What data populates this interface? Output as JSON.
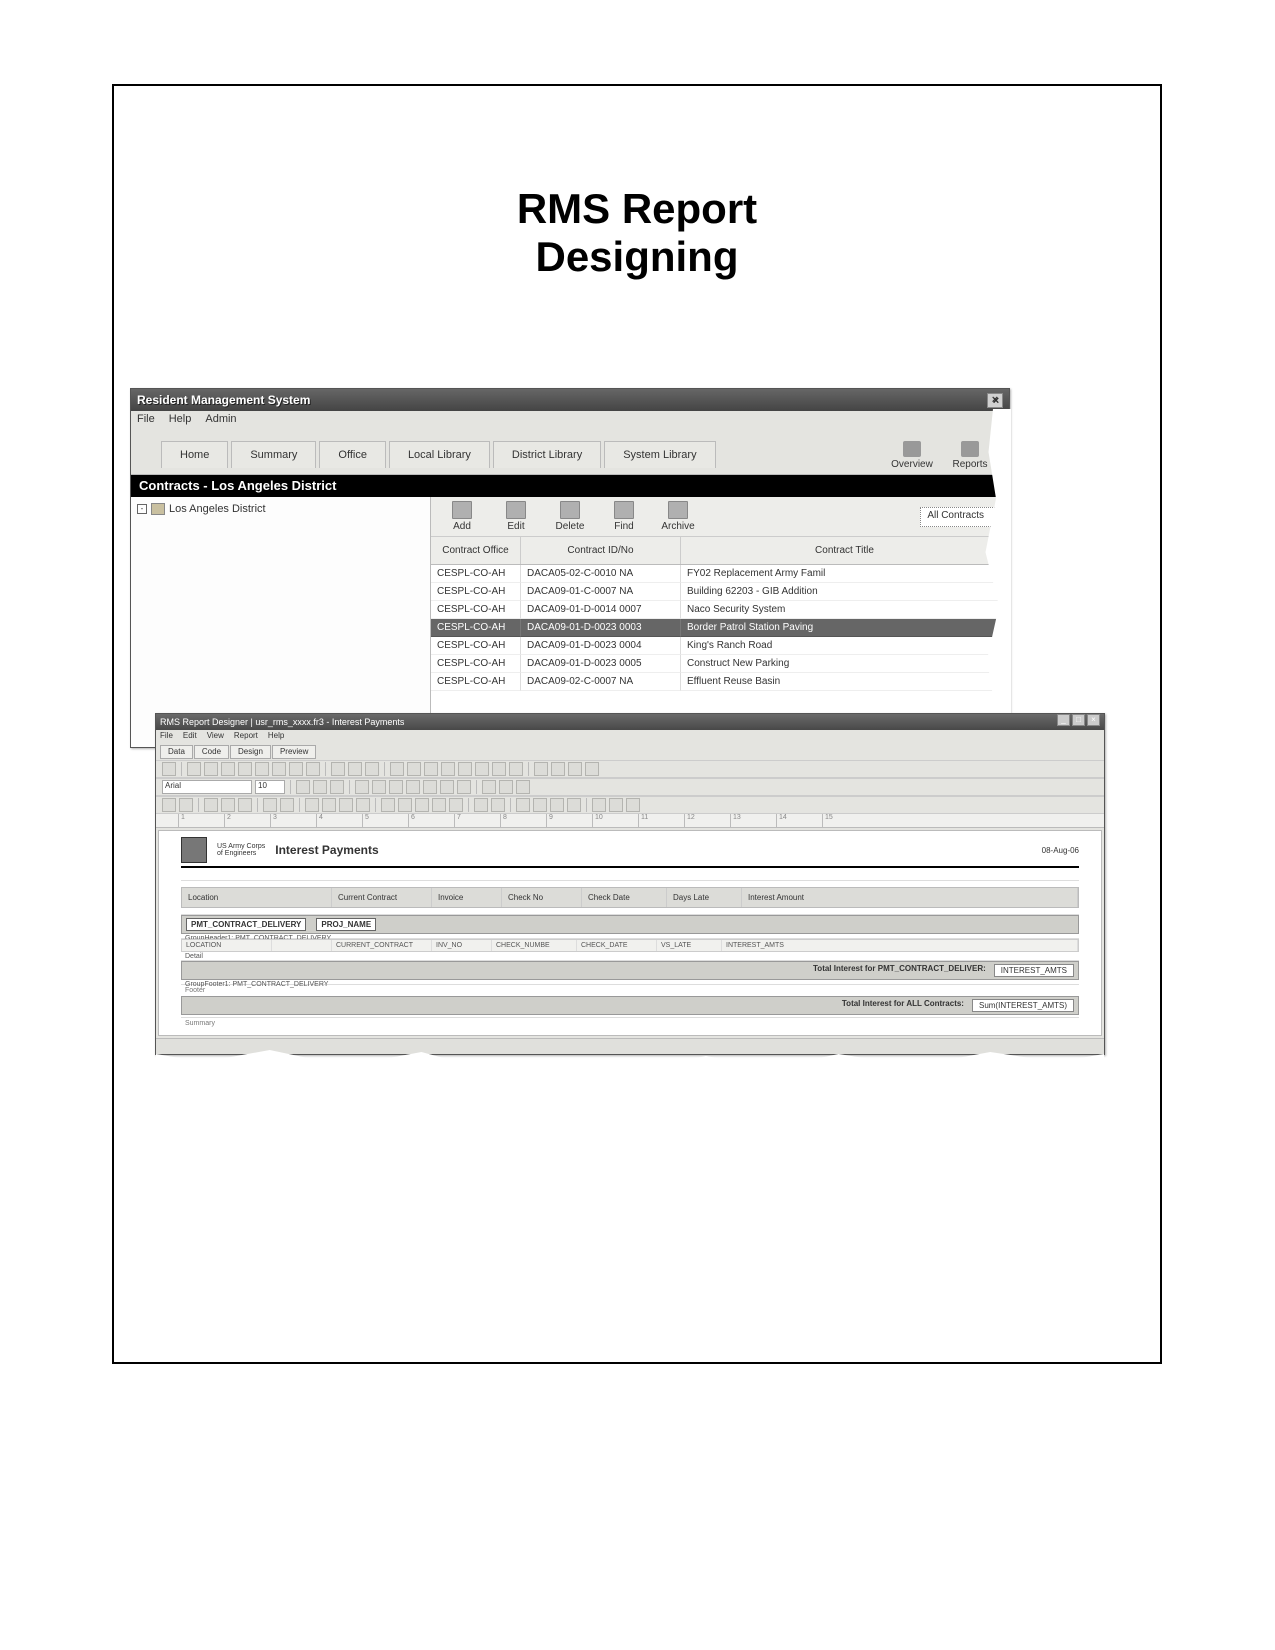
{
  "page_title_line1": "RMS Report",
  "page_title_line2": "Designing",
  "rms": {
    "title": "Resident Management System",
    "menubar": [
      "File",
      "Help",
      "Admin"
    ],
    "tabs": [
      "Home",
      "Summary",
      "Office",
      "Local Library",
      "District Library",
      "System Library"
    ],
    "right_buttons": [
      {
        "label": "Overview"
      },
      {
        "label": "Reports"
      }
    ],
    "section": "Contracts - Los Angeles District",
    "tree_root": "Los Angeles District",
    "actions": [
      "Add",
      "Edit",
      "Delete",
      "Find",
      "Archive"
    ],
    "filter": "All Contracts",
    "columns": [
      "Contract Office",
      "Contract ID/No",
      "Contract Title"
    ],
    "rows": [
      {
        "office": "CESPL-CO-AH",
        "idno": "DACA05-02-C-0010 NA",
        "title": "FY02 Replacement Army Famil",
        "sel": false
      },
      {
        "office": "CESPL-CO-AH",
        "idno": "DACA09-01-C-0007 NA",
        "title": "Building 62203 - GIB Addition",
        "sel": false
      },
      {
        "office": "CESPL-CO-AH",
        "idno": "DACA09-01-D-0014 0007",
        "title": "Naco Security System",
        "sel": false
      },
      {
        "office": "CESPL-CO-AH",
        "idno": "DACA09-01-D-0023 0003",
        "title": "Border Patrol Station Paving",
        "sel": true
      },
      {
        "office": "CESPL-CO-AH",
        "idno": "DACA09-01-D-0023 0004",
        "title": "King's Ranch Road",
        "sel": false
      },
      {
        "office": "CESPL-CO-AH",
        "idno": "DACA09-01-D-0023 0005",
        "title": "Construct New Parking",
        "sel": false
      },
      {
        "office": "CESPL-CO-AH",
        "idno": "DACA09-02-C-0007 NA",
        "title": "Effluent Reuse Basin",
        "sel": false
      }
    ]
  },
  "designer": {
    "title": "RMS Report Designer | usr_rms_xxxx.fr3 - Interest Payments",
    "menubar": [
      "File",
      "Edit",
      "View",
      "Report",
      "Help"
    ],
    "tabs": [
      "Data",
      "Code",
      "Design",
      "Preview"
    ],
    "ruler_marks": [
      "1",
      "2",
      "3",
      "4",
      "5",
      "6",
      "7",
      "8",
      "9",
      "10",
      "11",
      "12",
      "13",
      "14",
      "15"
    ],
    "report_title": "Interest Payments",
    "logo_line1": "US Army Corps",
    "logo_line2": "of Engineers",
    "report_date": "08-Aug-06",
    "col_headers": [
      "Location",
      "Current Contract",
      "Invoice",
      "Check No",
      "Check Date",
      "Days Late",
      "Interest Amount"
    ],
    "group_header_field": "PMT_CONTRACT_DELIVERY",
    "group_header_field2": "PROJ_NAME",
    "group_header_sub": "GroupHeader1: PMT_CONTRACT_DELIVERY",
    "detail_fields": [
      "LOCATION",
      "",
      "CURRENT_CONTRACT",
      "INV_NO",
      "CHECK_NUMBE",
      "CHECK_DATE",
      "VS_LATE",
      "INTEREST_AMTS"
    ],
    "detail_sub": "Detail",
    "gf_text": "Total Interest for PMT_CONTRACT_DELIVER:",
    "gf_val": "INTEREST_AMTS",
    "gf_sub": "GroupFooter1: PMT_CONTRACT_DELIVERY",
    "footer_sub": "Footer",
    "sum_text": "Total Interest for ALL Contracts:",
    "sum_val": "Sum(INTEREST_AMTS)",
    "sum_sub": "Summary"
  }
}
